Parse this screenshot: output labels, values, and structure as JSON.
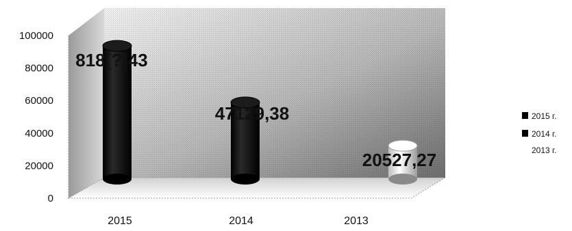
{
  "chart_data": {
    "type": "bar",
    "categories": [
      "2015",
      "2014",
      "2013"
    ],
    "values": [
      81889.43,
      47129.38,
      20527.27
    ],
    "data_labels": [
      "818[?]43",
      "47129,38",
      "20527,27"
    ],
    "ylim": [
      0,
      100000
    ],
    "y_ticks": [
      "100000",
      "80000",
      "60000",
      "40000",
      "20000",
      "0"
    ],
    "legend": [
      "2015 г.",
      "2014 г.",
      "2013 г."
    ],
    "legend_position": "right",
    "grid": false,
    "style": "3d-cylinder",
    "colors": {
      "2015": "#0a0a0a",
      "2014": "#101010",
      "2013": "#f4f4f4",
      "wall_dark": "#7a7a7a",
      "wall_light": "#e8e8e8"
    }
  }
}
